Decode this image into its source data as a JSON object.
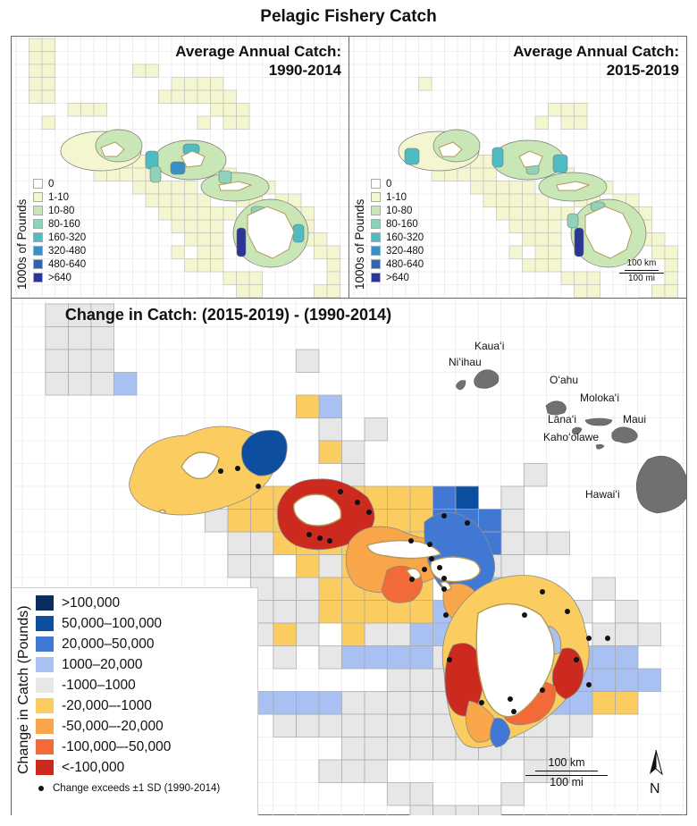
{
  "title": "Pelagic Fishery Catch",
  "panel_a": {
    "title_line1": "Average Annual Catch:",
    "title_line2": "1990-2014"
  },
  "panel_b": {
    "title_line1": "Average Annual Catch:",
    "title_line2": "2015-2019"
  },
  "panel_c": {
    "title": "Change in Catch: (2015-2019) - (1990-2014)"
  },
  "legend_small": {
    "axis_label": "1000s of Pounds",
    "items": [
      {
        "label": "0",
        "color": "#ffffff"
      },
      {
        "label": "1-10",
        "color": "#f4f6cf"
      },
      {
        "label": "10-80",
        "color": "#c9e6b6"
      },
      {
        "label": "80-160",
        "color": "#8fd1b9"
      },
      {
        "label": "160-320",
        "color": "#4fbcc3"
      },
      {
        "label": "320-480",
        "color": "#3a8fc4"
      },
      {
        "label": "480-640",
        "color": "#2f64b0"
      },
      {
        "label": ">640",
        "color": "#2a3595"
      }
    ]
  },
  "legend_change": {
    "axis_label": "Change in Catch (Pounds)",
    "items": [
      {
        "label": ">100,000",
        "color": "#0b2c5e"
      },
      {
        "label": "50,000–100,000",
        "color": "#0d4ea0"
      },
      {
        "label": "20,000–50,000",
        "color": "#4178d4"
      },
      {
        "label": "1000–20,000",
        "color": "#a9c0f2"
      },
      {
        "label": "-1000–1000",
        "color": "#e7e7e7"
      },
      {
        "label": "-20,000–-1000",
        "color": "#fbcd60"
      },
      {
        "label": "-50,000–-20,000",
        "color": "#f9a54a"
      },
      {
        "label": "-100,000–-50,000",
        "color": "#f26a38"
      },
      {
        "label": "<-100,000",
        "color": "#cc2a1f"
      }
    ],
    "dot_label": "Change exceeds ±1 SD (1990-2014)"
  },
  "scale_small": {
    "top": "100 km",
    "bottom": "100 mi"
  },
  "scale_big": {
    "top": "100 km",
    "bottom": "100 mi"
  },
  "north": "N",
  "islands": {
    "kauai": "Kauaʻi",
    "niihau": "Niʻihau",
    "oahu": "Oʻahu",
    "molokai": "Molokaʻi",
    "lanai": "Lānaʻi",
    "maui": "Maui",
    "kahoolawe": "Kahoʻolawe",
    "hawaii": "Hawaiʻi"
  }
}
